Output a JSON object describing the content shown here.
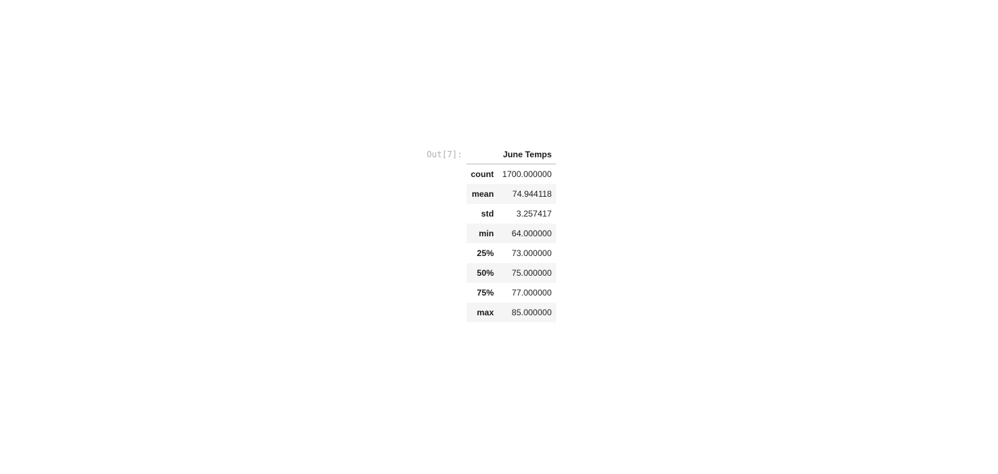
{
  "output": {
    "prompt": "Out[7]:"
  },
  "table": {
    "index_header": "",
    "column_header": "June Temps",
    "rows": [
      {
        "label": "count",
        "value": "1700.000000"
      },
      {
        "label": "mean",
        "value": "74.944118"
      },
      {
        "label": "std",
        "value": "3.257417"
      },
      {
        "label": "min",
        "value": "64.000000"
      },
      {
        "label": "25%",
        "value": "73.000000"
      },
      {
        "label": "50%",
        "value": "75.000000"
      },
      {
        "label": "75%",
        "value": "77.000000"
      },
      {
        "label": "max",
        "value": "85.000000"
      }
    ]
  }
}
